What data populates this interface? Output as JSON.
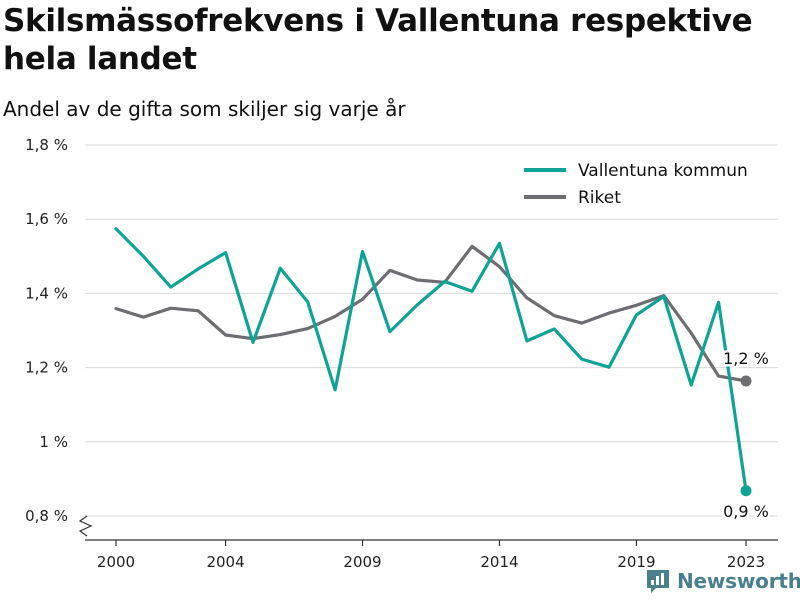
{
  "header": {
    "title": "Skilsmässofrekvens i Vallentuna respektive hela landet",
    "subtitle": "Andel av de gifta som skiljer sig varje år"
  },
  "brand": {
    "name": "Newsworthy",
    "color": "#4a7f8c"
  },
  "colors": {
    "vallentuna": "#0fa396",
    "riket": "#6e6e72",
    "grid": "#d9d9d9",
    "axis": "#333333"
  },
  "chart_data": {
    "type": "line",
    "title": "Skilsmässofrekvens i Vallentuna respektive hela landet",
    "subtitle": "Andel av de gifta som skiljer sig varje år",
    "x": [
      2000,
      2001,
      2002,
      2003,
      2004,
      2005,
      2006,
      2007,
      2008,
      2009,
      2010,
      2011,
      2012,
      2013,
      2014,
      2015,
      2016,
      2017,
      2018,
      2019,
      2020,
      2021,
      2022,
      2023
    ],
    "x_tick_values": [
      2000,
      2004,
      2009,
      2014,
      2019,
      2023
    ],
    "x_tick_labels": [
      "2000",
      "2004",
      "2009",
      "2014",
      "2019",
      "2023"
    ],
    "y_tick_values": [
      0.8,
      1.0,
      1.2,
      1.4,
      1.6,
      1.8
    ],
    "y_tick_labels": [
      "0,8 %",
      "1 %",
      "1,2 %",
      "1,4 %",
      "1,6 %",
      "1,8 %"
    ],
    "ylim": [
      0.8,
      1.8
    ],
    "xlim": [
      1999.5,
      2024.2
    ],
    "grid": true,
    "legend_position": "top-right",
    "series": [
      {
        "name": "Vallentuna kommun",
        "color": "#0fa396",
        "values": [
          1.574,
          1.5,
          1.417,
          1.466,
          1.51,
          1.268,
          1.468,
          1.377,
          1.14,
          1.513,
          1.297,
          1.369,
          1.432,
          1.406,
          1.535,
          1.272,
          1.304,
          1.223,
          1.201,
          1.342,
          1.392,
          1.153,
          1.376,
          0.868
        ],
        "end_label": "0,9 %"
      },
      {
        "name": "Riket",
        "color": "#6e6e72",
        "values": [
          1.359,
          1.336,
          1.36,
          1.353,
          1.288,
          1.278,
          1.289,
          1.305,
          1.338,
          1.384,
          1.462,
          1.436,
          1.43,
          1.527,
          1.472,
          1.388,
          1.34,
          1.32,
          1.347,
          1.368,
          1.394,
          1.293,
          1.177,
          1.164
        ],
        "end_label": "1,2 %"
      }
    ]
  }
}
